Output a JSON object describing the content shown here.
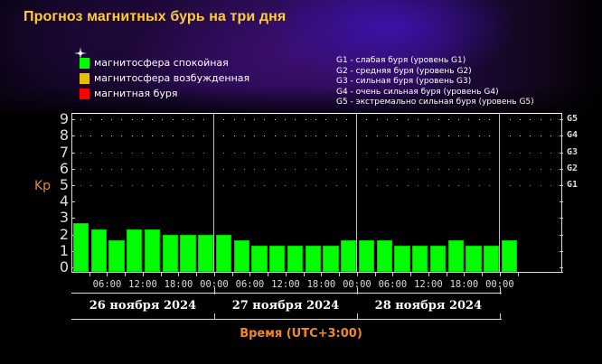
{
  "title": "Прогноз магнитных бурь на три дня",
  "legend": {
    "states": [
      {
        "label": "магнитосфера спокойная",
        "color": "#00ff00"
      },
      {
        "label": "магнитосфера возбужденная",
        "color": "#e6c000"
      },
      {
        "label": "магнитная буря",
        "color": "#ff0000"
      }
    ],
    "storm_levels": [
      "G1 - слабая буря (уровень G1)",
      "G2 - средняя буря (уровень G2)",
      "G3 - сильная буря (уровень G3)",
      "G4 - очень сильная буря (уровень G4)",
      "G5 - экстремально сильная буря (уровень G5)"
    ]
  },
  "axis": {
    "ylabel": "Kp",
    "xlabel": "Время (UTC+3:00)",
    "yticks": [
      "0",
      "1",
      "2",
      "3",
      "4",
      "5",
      "6",
      "7",
      "8",
      "9"
    ],
    "gticks": [
      {
        "label": "G1",
        "kp": 5
      },
      {
        "label": "G2",
        "kp": 6
      },
      {
        "label": "G3",
        "kp": 7
      },
      {
        "label": "G4",
        "kp": 8
      },
      {
        "label": "G5",
        "kp": 9
      }
    ],
    "time_labels": [
      "06:00",
      "12:00",
      "18:00",
      "00:00",
      "06:00",
      "12:00",
      "18:00",
      "00:00",
      "06:00",
      "12:00",
      "18:00",
      "00:00"
    ],
    "dates": [
      "26 ноября 2024",
      "27 ноября 2024",
      "28 ноября 2024"
    ]
  },
  "chart_data": {
    "type": "bar",
    "title": "Прогноз магнитных бурь на три дня",
    "xlabel": "Время (UTC+3:00)",
    "ylabel": "Kp",
    "ylim": [
      0,
      9
    ],
    "grid": "dotted horizontal at Kp 5-9",
    "interval_hours": 3,
    "categories": [
      "26.11 00-03",
      "26.11 03-06",
      "26.11 06-09",
      "26.11 09-12",
      "26.11 12-15",
      "26.11 15-18",
      "26.11 18-21",
      "26.11 21-24",
      "27.11 00-03",
      "27.11 03-06",
      "27.11 06-09",
      "27.11 09-12",
      "27.11 12-15",
      "27.11 15-18",
      "27.11 18-21",
      "27.11 21-24",
      "28.11 00-03",
      "28.11 03-06",
      "28.11 06-09",
      "28.11 09-12",
      "28.11 12-15",
      "28.11 15-18",
      "28.11 18-21",
      "28.11 21-24",
      "29.11 00-03"
    ],
    "values": [
      2.67,
      2.33,
      1.67,
      2.33,
      2.33,
      2.0,
      2.0,
      2.0,
      2.0,
      1.67,
      1.33,
      1.33,
      1.33,
      1.33,
      1.33,
      1.67,
      1.67,
      1.67,
      1.33,
      1.33,
      1.33,
      1.67,
      1.33,
      1.33,
      1.67
    ],
    "bar_color": "#00ff00",
    "right_axis_labels": {
      "G1": 5,
      "G2": 6,
      "G3": 7,
      "G4": 8,
      "G5": 9
    },
    "legend": [
      "магнитосфера спокойная",
      "магнитосфера возбужденная",
      "магнитная буря"
    ]
  }
}
